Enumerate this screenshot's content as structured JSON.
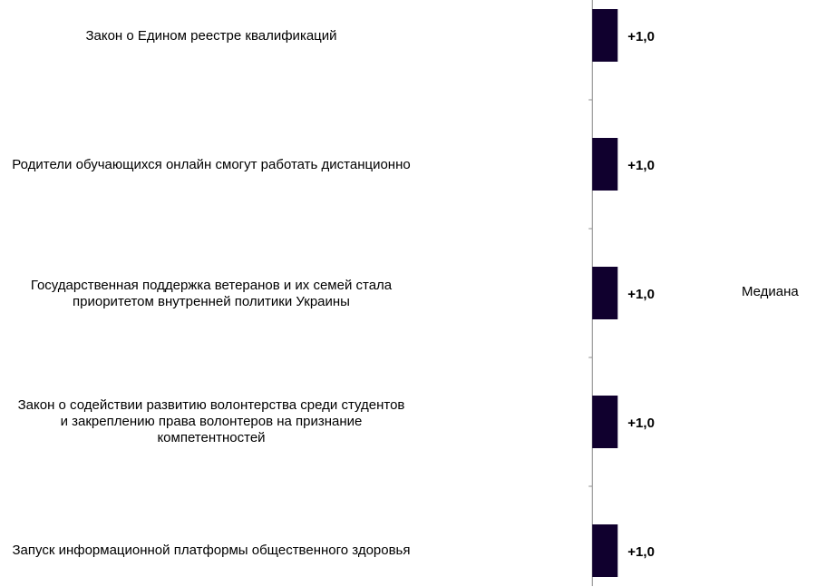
{
  "chart_data": {
    "type": "bar",
    "orientation": "horizontal",
    "categories": [
      "Закон о Едином реестре квалификаций",
      "Родители обучающихся онлайн смогут работать дистанционно",
      "Государственная поддержка ветеранов и их семей стала приоритетом внутренней политики Украины",
      "Закон о содействии развитию волонтерства среди студентов и закреплению права волонтеров на признание компетентностей",
      "Запуск информационной платформы общественного здоровья"
    ],
    "series": [
      {
        "name": "Медиана",
        "values": [
          1.0,
          1.0,
          1.0,
          1.0,
          1.0
        ],
        "color": "#10002e"
      }
    ],
    "data_labels": [
      "+1,0",
      "+1,0",
      "+1,0",
      "+1,0",
      "+1,0"
    ],
    "xlim": [
      -23.3,
      8.8
    ],
    "grid": false,
    "legend_position": "right"
  },
  "labels": {
    "cat0": [
      "Закон о Едином реестре квалификаций"
    ],
    "cat1": [
      "Родители обучающихся онлайн смогут работать дистанционно"
    ],
    "cat2": [
      "Государственная поддержка ветеранов и их семей стала",
      "приоритетом внутренней политики Украины"
    ],
    "cat3": [
      "Закон о содействии развитию волонтерства среди студентов",
      "и закреплению права волонтеров на признание",
      "компетентностей"
    ],
    "cat4": [
      "Запуск информационной платформы общественного здоровья"
    ]
  },
  "legend_label": "Медиана"
}
